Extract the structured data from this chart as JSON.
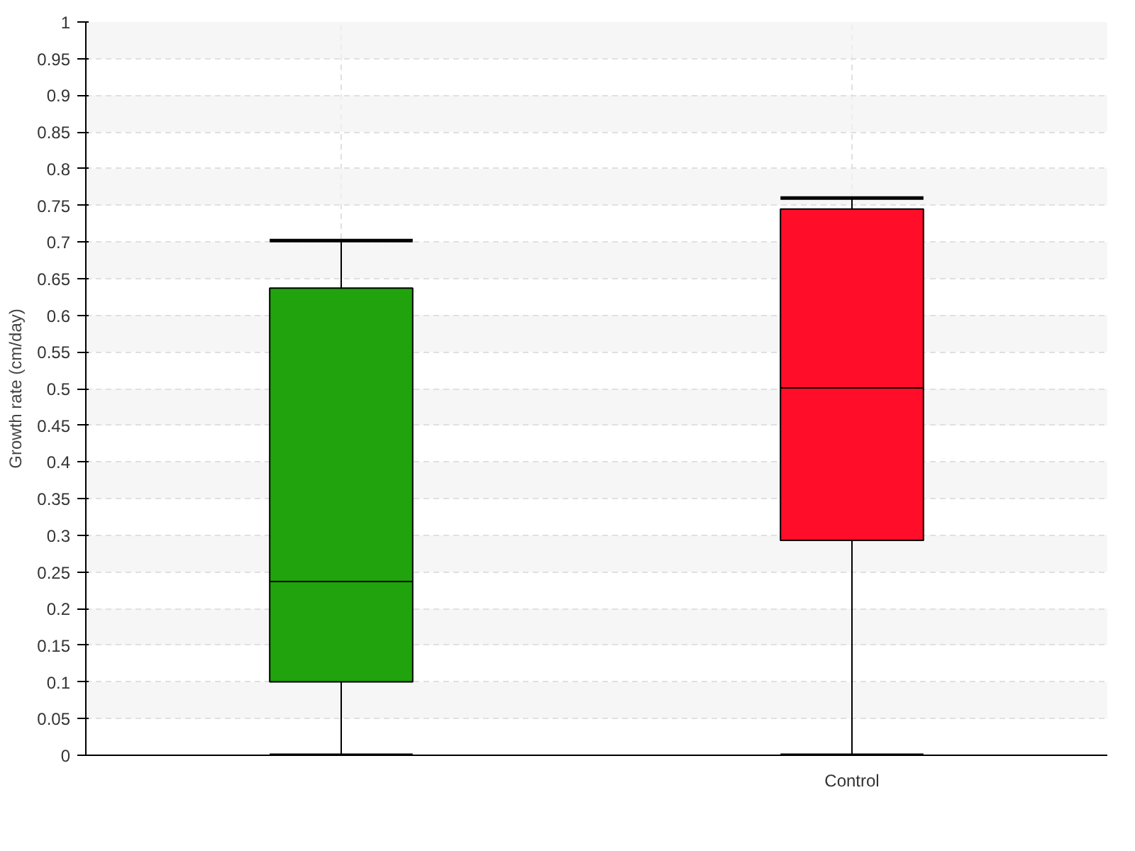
{
  "chart_data": {
    "type": "box",
    "ylabel": "Growth rate (cm/day)",
    "categories": [
      null,
      "Control"
    ],
    "series": [
      {
        "colors": [
          "#21a30d",
          "#ff0d29"
        ],
        "boxes": [
          {
            "low": 0,
            "q1": 0.1,
            "median": 0.237,
            "q3": 0.637,
            "high": 0.702
          },
          {
            "low": 0,
            "q1": 0.293,
            "median": 0.501,
            "q3": 0.745,
            "high": 0.76
          }
        ]
      }
    ],
    "ylim": [
      0,
      1
    ],
    "yticks": [
      0,
      0.05,
      0.1,
      0.15,
      0.2,
      0.25,
      0.3,
      0.35,
      0.4,
      0.45,
      0.5,
      0.55,
      0.6,
      0.65,
      0.7,
      0.75,
      0.8,
      0.85,
      0.9,
      0.95,
      1
    ],
    "grid": true
  }
}
